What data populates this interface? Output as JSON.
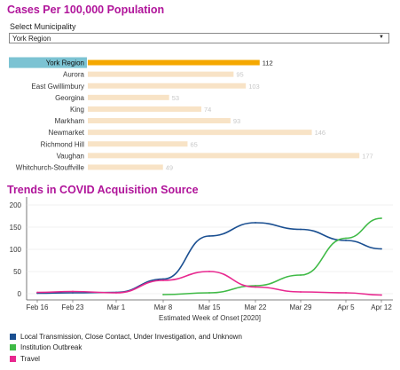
{
  "header": {
    "cases_title": "Cases Per 100,000 Population",
    "select_label": "Select Municipality",
    "selected_municipality": "York Region",
    "trends_title": "Trends in COVID Acquisition Source"
  },
  "colors": {
    "title": "#b0149a",
    "selected_bar": "#f5a800",
    "other_bar": "#f8e3c6",
    "selected_label_bg": "#7cc3d3"
  },
  "chart_data": [
    {
      "type": "bar",
      "orientation": "horizontal",
      "categories": [
        "York Region",
        "Aurora",
        "East Gwillimbury",
        "Georgina",
        "King",
        "Markham",
        "Newmarket",
        "Richmond Hill",
        "Vaughan",
        "Whitchurch-Stouffville"
      ],
      "values": [
        112,
        95,
        103,
        53,
        74,
        93,
        146,
        65,
        177,
        49
      ],
      "highlighted": "York Region"
    },
    {
      "type": "line",
      "x": [
        "Feb 16",
        "Feb 23",
        "Mar 1",
        "Mar 8",
        "Mar 15",
        "Mar 22",
        "Mar 29",
        "Apr 5",
        "Apr 12"
      ],
      "xlabel": "Estimated Week of Onset [2020]",
      "ylabel": "",
      "ylim": [
        0,
        200
      ],
      "yticks": [
        0,
        50,
        100,
        150,
        200
      ],
      "grid": true,
      "series": [
        {
          "name": "Local Transmission, Close Contact, Under Investigation, and Unknown",
          "color": "#1a4f91",
          "values": [
            1,
            2,
            3,
            33,
            130,
            160,
            145,
            120,
            101
          ]
        },
        {
          "name": "Institution Outbreak",
          "color": "#3fba46",
          "values": [
            null,
            null,
            null,
            -2,
            2,
            18,
            42,
            125,
            170
          ]
        },
        {
          "name": "Travel",
          "color": "#e8288f",
          "values": [
            3,
            5,
            2,
            30,
            50,
            15,
            4,
            2,
            -3
          ]
        }
      ]
    }
  ]
}
